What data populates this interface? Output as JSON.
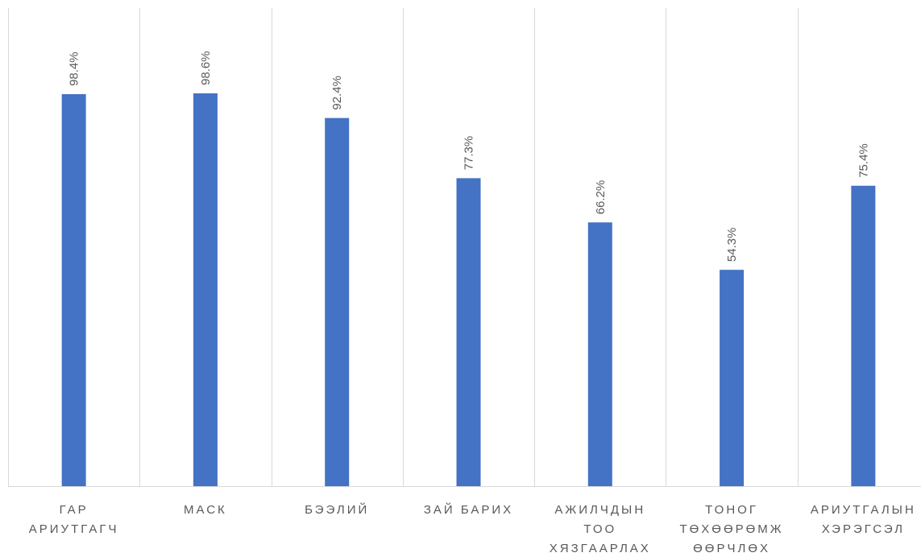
{
  "chart_data": {
    "type": "bar",
    "categories": [
      [
        "ГАР",
        "АРИУТГАГЧ"
      ],
      [
        "МАСК"
      ],
      [
        "БЭЭЛИЙ"
      ],
      [
        "ЗАЙ БАРИХ"
      ],
      [
        "АЖИЛЧДЫН",
        "ТОО",
        "ХЯЗГААРЛАХ"
      ],
      [
        "ТОНОГ",
        "ТӨХӨӨРӨМЖ",
        "ӨӨРЧЛӨХ"
      ],
      [
        "АРИУТГАЛЫН",
        "ХЭРЭГСЭЛ"
      ]
    ],
    "values": [
      98.4,
      98.6,
      92.4,
      77.3,
      66.2,
      54.3,
      75.4
    ],
    "value_labels": [
      "98.4%",
      "98.6%",
      "92.4%",
      "77.3%",
      "66.2%",
      "54.3%",
      "75.4%"
    ],
    "title": "",
    "xlabel": "",
    "ylabel": "",
    "ylim": [
      0,
      100
    ],
    "grid": "vertical-category-separators",
    "legend": "none",
    "colors": {
      "bar": "#4472c4",
      "grid": "#d9d9d9",
      "text": "#595959"
    }
  }
}
